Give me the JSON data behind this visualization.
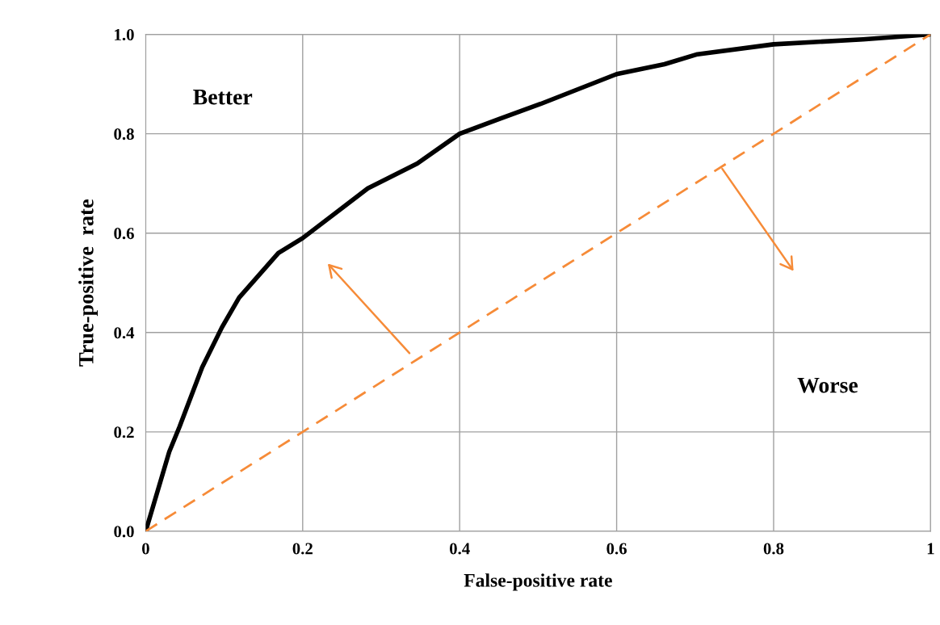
{
  "chart_data": {
    "type": "line",
    "xlabel": "False-positive rate",
    "ylabel": "True-positive  rate",
    "annotations": [
      "Better",
      "Worse"
    ],
    "series": [
      {
        "color": "#000000",
        "line_style": "solid",
        "x": [
          0,
          0.03,
          0.043,
          0.072,
          0.097,
          0.119,
          0.169,
          0.2,
          0.283,
          0.346,
          0.4,
          0.451,
          0.503,
          0.6,
          0.661,
          0.703,
          0.8,
          0.914,
          1.0
        ],
        "values": [
          0,
          0.16,
          0.21,
          0.33,
          0.41,
          0.47,
          0.56,
          0.59,
          0.69,
          0.74,
          0.8,
          0.83,
          0.86,
          0.92,
          0.94,
          0.96,
          0.98,
          0.99,
          1.0
        ]
      },
      {
        "color": "#f68b38",
        "line_style": "dashed",
        "x": [
          0,
          1
        ],
        "values": [
          0,
          1
        ]
      }
    ],
    "xlim": [
      0,
      1
    ],
    "ylim": [
      0,
      1.0
    ],
    "xticks": [
      0,
      0.2,
      0.4,
      0.6,
      0.8,
      1
    ],
    "yticks": [
      {
        "value": 0,
        "label": "0.0"
      },
      0.2,
      0.4,
      0.6,
      0.8,
      {
        "value": 1,
        "label": "1.0"
      }
    ],
    "grid": true,
    "legend": false,
    "marker": "none"
  }
}
